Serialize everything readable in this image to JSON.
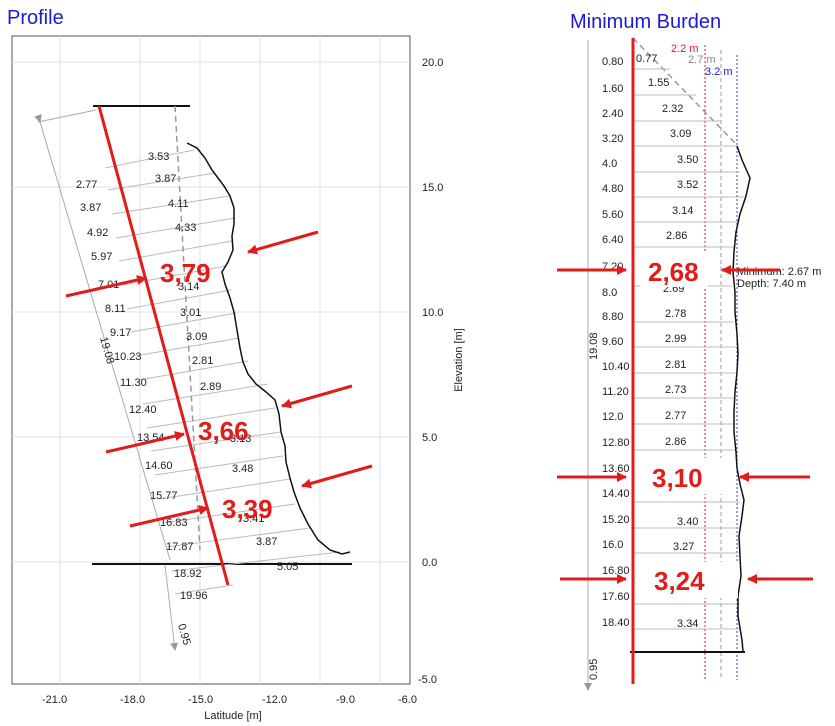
{
  "profile": {
    "title": "Profile",
    "x_ticks": [
      "-21.0",
      "-18.0",
      "-15.0",
      "-12.0",
      "-9.0",
      "-6.0"
    ],
    "y_ticks": [
      "20.0",
      "15.0",
      "10.0",
      "5.0",
      "0.0",
      "-5.0"
    ],
    "x_label": "Latitude [m]",
    "y_label": "Elevation [m]",
    "depth_labels": [
      "2.77",
      "3.87",
      "4.92",
      "5.97",
      "7.01",
      "8.11",
      "9.17",
      "10.23",
      "11.30",
      "12.40",
      "13.54",
      "14.60",
      "15.77",
      "16.83",
      "17.87",
      "18.92",
      "19.96"
    ],
    "burden_values": [
      "3.53",
      "3.87",
      "4.11",
      "4.33",
      "3.79",
      "3.14",
      "3.01",
      "3.09",
      "2.81",
      "2.89",
      "3.66",
      "3.13",
      "3.48",
      "3.39",
      "3.41",
      "3.87",
      "5.05"
    ],
    "total_length": "19.08",
    "subdrill": "0.95",
    "callouts": [
      "3,79",
      "3,66",
      "3,39"
    ]
  },
  "burden": {
    "title": "Minimum Burden",
    "depths": [
      "0.80",
      "1.60",
      "2.40",
      "3.20",
      "4.0",
      "4.80",
      "5.60",
      "6.40",
      "7.20",
      "8.0",
      "8.80",
      "9.60",
      "10.40",
      "11.20",
      "12.0",
      "12.80",
      "13.60",
      "14.40",
      "15.20",
      "16.0",
      "16.80",
      "17.60",
      "18.40"
    ],
    "values": [
      "0.77",
      "1.55",
      "2.32",
      "3.09",
      "3.50",
      "3.52",
      "3.14",
      "2.86",
      "2.68",
      "2.69",
      "2.78",
      "2.99",
      "2.81",
      "2.73",
      "2.77",
      "2.86",
      "3.10",
      "",
      "3.40",
      "3.27",
      "3.24",
      "",
      "3.34"
    ],
    "ref_lines": [
      "2.2 m",
      "2.7 m",
      "3.2 m"
    ],
    "minimum_text": "Minimum: 2.67 m",
    "depth_text": "Depth: 7.40 m",
    "total_length": "19.08",
    "subdrill": "0.95",
    "callouts": [
      "2,68",
      "3,10",
      "3,24"
    ]
  }
}
